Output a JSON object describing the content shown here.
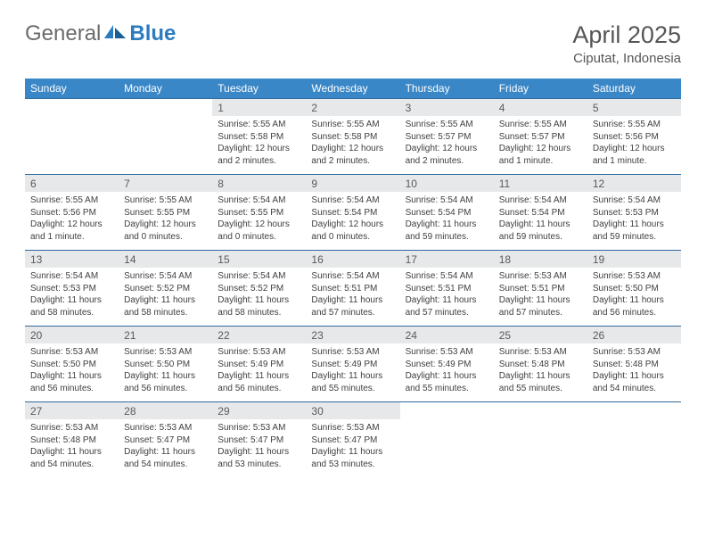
{
  "logo": {
    "text1": "General",
    "text2": "Blue"
  },
  "title": "April 2025",
  "location": "Ciputat, Indonesia",
  "colors": {
    "header_bg": "#3a87c7",
    "header_text": "#ffffff",
    "daynum_bg": "#e7e8e9",
    "row_border": "#2f6a9e",
    "body_text": "#3f3f3f",
    "title_text": "#565656",
    "logo_gray": "#6b6b6b",
    "logo_blue": "#2b7bbf"
  },
  "weekdays": [
    "Sunday",
    "Monday",
    "Tuesday",
    "Wednesday",
    "Thursday",
    "Friday",
    "Saturday"
  ],
  "weeks": [
    [
      {
        "n": "",
        "lines": []
      },
      {
        "n": "",
        "lines": []
      },
      {
        "n": "1",
        "lines": [
          "Sunrise: 5:55 AM",
          "Sunset: 5:58 PM",
          "Daylight: 12 hours and 2 minutes."
        ]
      },
      {
        "n": "2",
        "lines": [
          "Sunrise: 5:55 AM",
          "Sunset: 5:58 PM",
          "Daylight: 12 hours and 2 minutes."
        ]
      },
      {
        "n": "3",
        "lines": [
          "Sunrise: 5:55 AM",
          "Sunset: 5:57 PM",
          "Daylight: 12 hours and 2 minutes."
        ]
      },
      {
        "n": "4",
        "lines": [
          "Sunrise: 5:55 AM",
          "Sunset: 5:57 PM",
          "Daylight: 12 hours and 1 minute."
        ]
      },
      {
        "n": "5",
        "lines": [
          "Sunrise: 5:55 AM",
          "Sunset: 5:56 PM",
          "Daylight: 12 hours and 1 minute."
        ]
      }
    ],
    [
      {
        "n": "6",
        "lines": [
          "Sunrise: 5:55 AM",
          "Sunset: 5:56 PM",
          "Daylight: 12 hours and 1 minute."
        ]
      },
      {
        "n": "7",
        "lines": [
          "Sunrise: 5:55 AM",
          "Sunset: 5:55 PM",
          "Daylight: 12 hours and 0 minutes."
        ]
      },
      {
        "n": "8",
        "lines": [
          "Sunrise: 5:54 AM",
          "Sunset: 5:55 PM",
          "Daylight: 12 hours and 0 minutes."
        ]
      },
      {
        "n": "9",
        "lines": [
          "Sunrise: 5:54 AM",
          "Sunset: 5:54 PM",
          "Daylight: 12 hours and 0 minutes."
        ]
      },
      {
        "n": "10",
        "lines": [
          "Sunrise: 5:54 AM",
          "Sunset: 5:54 PM",
          "Daylight: 11 hours and 59 minutes."
        ]
      },
      {
        "n": "11",
        "lines": [
          "Sunrise: 5:54 AM",
          "Sunset: 5:54 PM",
          "Daylight: 11 hours and 59 minutes."
        ]
      },
      {
        "n": "12",
        "lines": [
          "Sunrise: 5:54 AM",
          "Sunset: 5:53 PM",
          "Daylight: 11 hours and 59 minutes."
        ]
      }
    ],
    [
      {
        "n": "13",
        "lines": [
          "Sunrise: 5:54 AM",
          "Sunset: 5:53 PM",
          "Daylight: 11 hours and 58 minutes."
        ]
      },
      {
        "n": "14",
        "lines": [
          "Sunrise: 5:54 AM",
          "Sunset: 5:52 PM",
          "Daylight: 11 hours and 58 minutes."
        ]
      },
      {
        "n": "15",
        "lines": [
          "Sunrise: 5:54 AM",
          "Sunset: 5:52 PM",
          "Daylight: 11 hours and 58 minutes."
        ]
      },
      {
        "n": "16",
        "lines": [
          "Sunrise: 5:54 AM",
          "Sunset: 5:51 PM",
          "Daylight: 11 hours and 57 minutes."
        ]
      },
      {
        "n": "17",
        "lines": [
          "Sunrise: 5:54 AM",
          "Sunset: 5:51 PM",
          "Daylight: 11 hours and 57 minutes."
        ]
      },
      {
        "n": "18",
        "lines": [
          "Sunrise: 5:53 AM",
          "Sunset: 5:51 PM",
          "Daylight: 11 hours and 57 minutes."
        ]
      },
      {
        "n": "19",
        "lines": [
          "Sunrise: 5:53 AM",
          "Sunset: 5:50 PM",
          "Daylight: 11 hours and 56 minutes."
        ]
      }
    ],
    [
      {
        "n": "20",
        "lines": [
          "Sunrise: 5:53 AM",
          "Sunset: 5:50 PM",
          "Daylight: 11 hours and 56 minutes."
        ]
      },
      {
        "n": "21",
        "lines": [
          "Sunrise: 5:53 AM",
          "Sunset: 5:50 PM",
          "Daylight: 11 hours and 56 minutes."
        ]
      },
      {
        "n": "22",
        "lines": [
          "Sunrise: 5:53 AM",
          "Sunset: 5:49 PM",
          "Daylight: 11 hours and 56 minutes."
        ]
      },
      {
        "n": "23",
        "lines": [
          "Sunrise: 5:53 AM",
          "Sunset: 5:49 PM",
          "Daylight: 11 hours and 55 minutes."
        ]
      },
      {
        "n": "24",
        "lines": [
          "Sunrise: 5:53 AM",
          "Sunset: 5:49 PM",
          "Daylight: 11 hours and 55 minutes."
        ]
      },
      {
        "n": "25",
        "lines": [
          "Sunrise: 5:53 AM",
          "Sunset: 5:48 PM",
          "Daylight: 11 hours and 55 minutes."
        ]
      },
      {
        "n": "26",
        "lines": [
          "Sunrise: 5:53 AM",
          "Sunset: 5:48 PM",
          "Daylight: 11 hours and 54 minutes."
        ]
      }
    ],
    [
      {
        "n": "27",
        "lines": [
          "Sunrise: 5:53 AM",
          "Sunset: 5:48 PM",
          "Daylight: 11 hours and 54 minutes."
        ]
      },
      {
        "n": "28",
        "lines": [
          "Sunrise: 5:53 AM",
          "Sunset: 5:47 PM",
          "Daylight: 11 hours and 54 minutes."
        ]
      },
      {
        "n": "29",
        "lines": [
          "Sunrise: 5:53 AM",
          "Sunset: 5:47 PM",
          "Daylight: 11 hours and 53 minutes."
        ]
      },
      {
        "n": "30",
        "lines": [
          "Sunrise: 5:53 AM",
          "Sunset: 5:47 PM",
          "Daylight: 11 hours and 53 minutes."
        ]
      },
      {
        "n": "",
        "lines": []
      },
      {
        "n": "",
        "lines": []
      },
      {
        "n": "",
        "lines": []
      }
    ]
  ]
}
